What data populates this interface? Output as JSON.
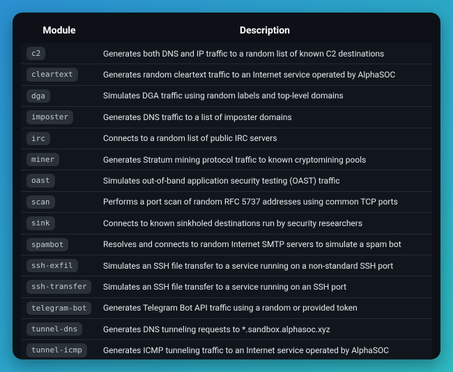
{
  "colors": {
    "panel_bg": "#0d1117",
    "row_bg": "#11161d",
    "row_border": "#262b32",
    "chip_bg": "#2b3139",
    "chip_fg": "#c3c9d1",
    "header_fg": "#ffffff",
    "text_fg": "#e6e8eb"
  },
  "table": {
    "headers": {
      "module": "Module",
      "description": "Description"
    },
    "rows": [
      {
        "module": "c2",
        "description": "Generates both DNS and IP traffic to a random list of known C2 destinations"
      },
      {
        "module": "cleartext",
        "description": "Generates random cleartext traffic to an Internet service operated by AlphaSOC"
      },
      {
        "module": "dga",
        "description": "Simulates DGA traffic using random labels and top-level domains"
      },
      {
        "module": "imposter",
        "description": "Generates DNS traffic to a list of imposter domains"
      },
      {
        "module": "irc",
        "description": "Connects to a random list of public IRC servers"
      },
      {
        "module": "miner",
        "description": "Generates Stratum mining protocol traffic to known cryptomining pools"
      },
      {
        "module": "oast",
        "description": "Simulates out-of-band application security testing (OAST) traffic"
      },
      {
        "module": "scan",
        "description": "Performs a port scan of random RFC 5737 addresses using common TCP ports"
      },
      {
        "module": "sink",
        "description": "Connects to known sinkholed destinations run by security researchers"
      },
      {
        "module": "spambot",
        "description": "Resolves and connects to random Internet SMTP servers to simulate a spam bot"
      },
      {
        "module": "ssh-exfil",
        "description": "Simulates an SSH file transfer to a service running on a non-standard SSH port"
      },
      {
        "module": "ssh-transfer",
        "description": "Simulates an SSH file transfer to a service running on an SSH port"
      },
      {
        "module": "telegram-bot",
        "description": "Generates Telegram Bot API traffic using a random or provided token"
      },
      {
        "module": "tunnel-dns",
        "description": "Generates DNS tunneling requests to *.sandbox.alphasoc.xyz"
      },
      {
        "module": "tunnel-icmp",
        "description": "Generates ICMP tunneling traffic to an Internet service operated by AlphaSOC"
      }
    ]
  }
}
